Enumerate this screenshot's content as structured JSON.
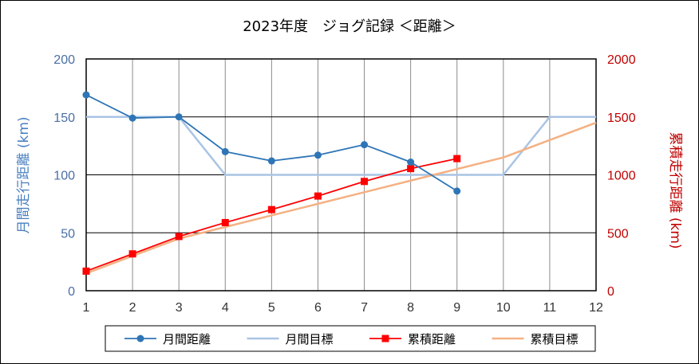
{
  "chart_data": {
    "type": "line",
    "title": "2023年度　ジョグ記録 ＜距離＞",
    "x": [
      1,
      2,
      3,
      4,
      5,
      6,
      7,
      8,
      9,
      10,
      11,
      12
    ],
    "xlim": [
      1,
      12
    ],
    "y_left": {
      "label": "月間走行距離 (km)",
      "lim": [
        0,
        200
      ],
      "ticks": [
        0,
        50,
        100,
        150,
        200
      ],
      "color": "#4a6fa5"
    },
    "y_right": {
      "label": "累積走行距離 (km)",
      "lim": [
        0,
        2000
      ],
      "ticks": [
        0,
        500,
        1000,
        1500,
        2000
      ],
      "color": "#c00000"
    },
    "grid": true,
    "legend_position": "bottom",
    "series": [
      {
        "name": "月間距離",
        "axis": "left",
        "color": "#2e75b6",
        "marker": "circle",
        "x": [
          1,
          2,
          3,
          4,
          5,
          6,
          7,
          8,
          9
        ],
        "values": [
          169,
          149,
          150,
          120,
          112,
          117,
          126,
          111,
          86
        ]
      },
      {
        "name": "月間目標",
        "axis": "left",
        "color": "#a9c4e4",
        "marker": "none",
        "x": [
          1,
          2,
          3,
          4,
          5,
          6,
          7,
          8,
          9,
          10,
          11,
          12
        ],
        "values": [
          150,
          150,
          150,
          100,
          100,
          100,
          100,
          100,
          100,
          100,
          150,
          150
        ]
      },
      {
        "name": "累積距離",
        "axis": "right",
        "color": "#ff0000",
        "marker": "square",
        "x": [
          1,
          2,
          3,
          4,
          5,
          6,
          7,
          8,
          9
        ],
        "values": [
          169,
          318,
          468,
          588,
          700,
          817,
          943,
          1054,
          1140
        ]
      },
      {
        "name": "累積目標",
        "axis": "right",
        "color": "#f4b183",
        "marker": "none",
        "x": [
          1,
          2,
          3,
          4,
          5,
          6,
          7,
          8,
          9,
          10,
          11,
          12
        ],
        "values": [
          150,
          300,
          450,
          550,
          650,
          750,
          850,
          950,
          1050,
          1150,
          1300,
          1450
        ]
      }
    ]
  }
}
